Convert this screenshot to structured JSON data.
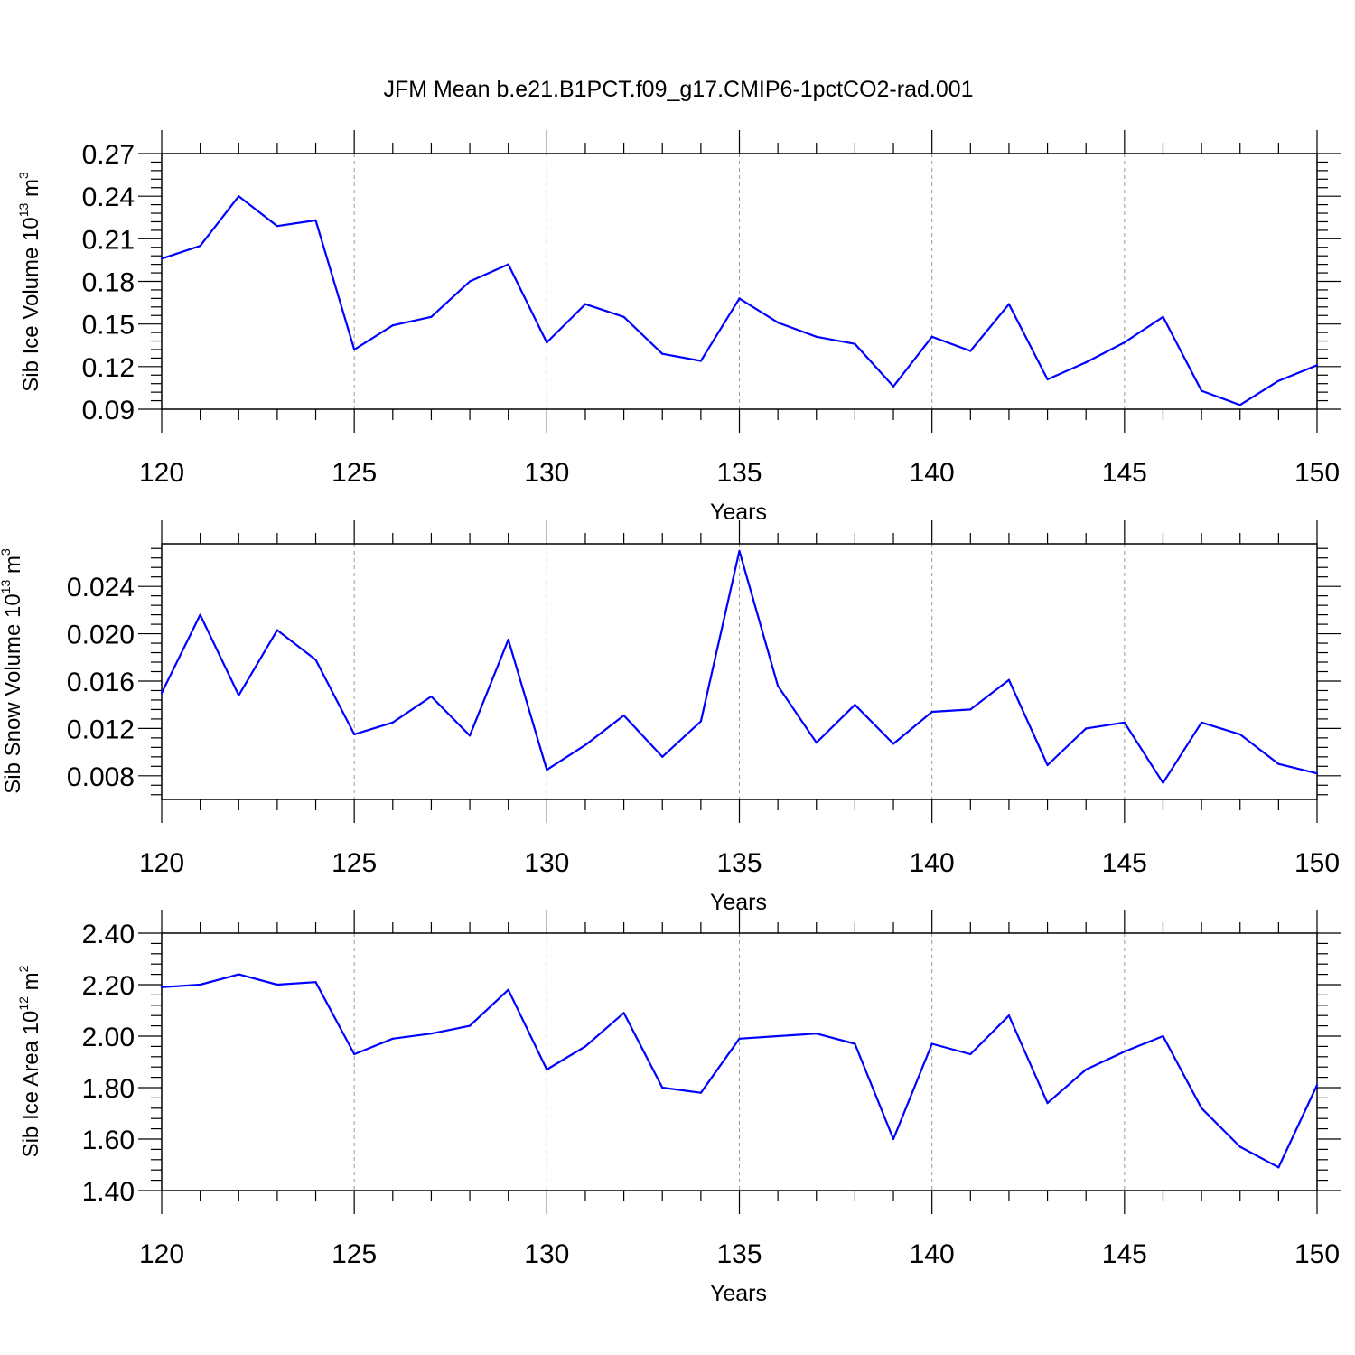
{
  "title": "JFM Mean b.e21.B1PCT.f09_g17.CMIP6-1pctCO2-rad.001",
  "colors": {
    "line": "#0000ff",
    "axis": "#000000",
    "grid": "#999999"
  },
  "chart_data": [
    {
      "type": "line",
      "xlabel": "Years",
      "ylabel": {
        "prefix": "Sib Ice Volume 10",
        "exponent": "13",
        "unit": " m",
        "unit_exponent": "3"
      },
      "xlim": [
        120,
        150
      ],
      "ylim": [
        0.09,
        0.27
      ],
      "xticks": [
        "120",
        "125",
        "130",
        "135",
        "140",
        "145",
        "150"
      ],
      "yticks": [
        "0.09",
        "0.12",
        "0.15",
        "0.18",
        "0.21",
        "0.24",
        "0.27"
      ],
      "grid": "dashed vertical at major x ticks",
      "x": [
        120,
        121,
        122,
        123,
        124,
        125,
        126,
        127,
        128,
        129,
        130,
        131,
        132,
        133,
        134,
        135,
        136,
        137,
        138,
        139,
        140,
        141,
        142,
        143,
        144,
        145,
        146,
        147,
        148,
        149,
        150
      ],
      "values": [
        0.196,
        0.205,
        0.24,
        0.219,
        0.223,
        0.132,
        0.149,
        0.155,
        0.18,
        0.192,
        0.137,
        0.164,
        0.155,
        0.129,
        0.124,
        0.168,
        0.151,
        0.141,
        0.136,
        0.106,
        0.141,
        0.131,
        0.164,
        0.111,
        0.123,
        0.137,
        0.155,
        0.103,
        0.093,
        0.11,
        0.121
      ]
    },
    {
      "type": "line",
      "xlabel": "Years",
      "ylabel": {
        "prefix": "Sib Snow Volume 10",
        "exponent": "13",
        "unit": " m",
        "unit_exponent": "3"
      },
      "xlim": [
        120,
        150
      ],
      "ylim": [
        0.006,
        0.027
      ],
      "xticks": [
        "120",
        "125",
        "130",
        "135",
        "140",
        "145",
        "150"
      ],
      "yticks": [
        "0.008",
        "0.012",
        "0.016",
        "0.020",
        "0.024"
      ],
      "ytick_values": [
        0.008,
        0.012,
        0.016,
        0.02,
        0.024
      ],
      "grid": "dashed vertical at major x ticks",
      "x": [
        120,
        121,
        122,
        123,
        124,
        125,
        126,
        127,
        128,
        129,
        130,
        131,
        132,
        133,
        134,
        135,
        136,
        137,
        138,
        139,
        140,
        141,
        142,
        143,
        144,
        145,
        146,
        147,
        148,
        149,
        150
      ],
      "values": [
        0.015,
        0.0216,
        0.0148,
        0.0203,
        0.0178,
        0.0115,
        0.0125,
        0.0147,
        0.0114,
        0.0195,
        0.0085,
        0.0106,
        0.0131,
        0.0096,
        0.0126,
        0.027,
        0.0156,
        0.0108,
        0.014,
        0.0107,
        0.0134,
        0.0136,
        0.0161,
        0.0089,
        0.012,
        0.0125,
        0.0074,
        0.0125,
        0.0115,
        0.009,
        0.0082
      ]
    },
    {
      "type": "line",
      "xlabel": "Years",
      "ylabel": {
        "prefix": "Sib Ice Area 10",
        "exponent": "12",
        "unit": " m",
        "unit_exponent": "2"
      },
      "xlim": [
        120,
        150
      ],
      "ylim": [
        1.4,
        2.4
      ],
      "xticks": [
        "120",
        "125",
        "130",
        "135",
        "140",
        "145",
        "150"
      ],
      "yticks": [
        "1.40",
        "1.60",
        "1.80",
        "2.00",
        "2.20",
        "2.40"
      ],
      "grid": "dashed vertical at major x ticks",
      "x": [
        120,
        121,
        122,
        123,
        124,
        125,
        126,
        127,
        128,
        129,
        130,
        131,
        132,
        133,
        134,
        135,
        136,
        137,
        138,
        139,
        140,
        141,
        142,
        143,
        144,
        145,
        146,
        147,
        148,
        149,
        150
      ],
      "values": [
        2.19,
        2.2,
        2.24,
        2.2,
        2.21,
        1.93,
        1.99,
        2.01,
        2.04,
        2.18,
        1.87,
        1.96,
        2.09,
        1.8,
        1.78,
        1.99,
        2.0,
        2.01,
        1.97,
        1.6,
        1.97,
        1.93,
        2.08,
        1.74,
        1.87,
        1.94,
        2.0,
        1.72,
        1.57,
        1.49,
        1.81
      ]
    }
  ]
}
